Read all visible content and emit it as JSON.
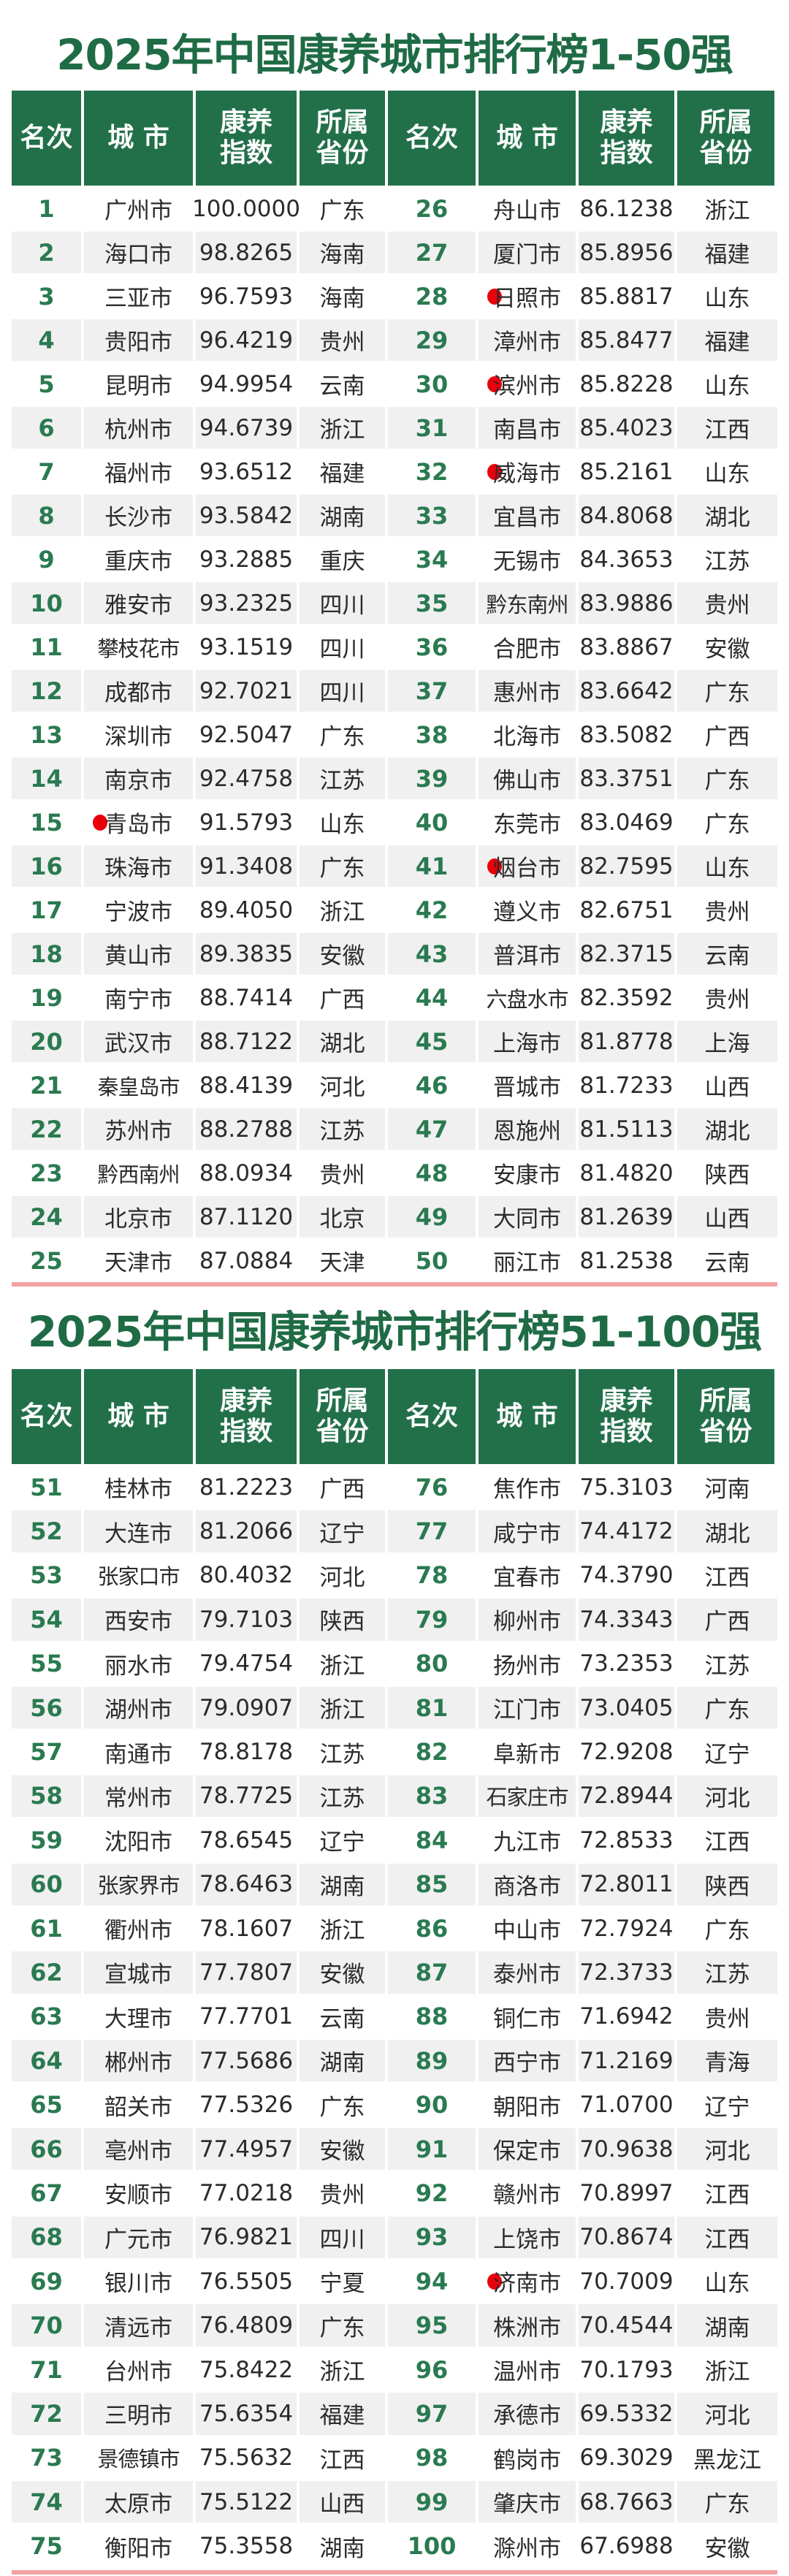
{
  "colors": {
    "header_green": "#22704a",
    "title_green": "#1f6b45",
    "marker_red": "#e8000b",
    "divider_pink": "#f2a3a3",
    "alt_row": "#f0f0f0"
  },
  "tables": [
    {
      "title": "2025年中国康养城市排行榜1-50强",
      "headers": [
        "名次",
        "城 市",
        "康养\n指数",
        "所属\n省份",
        "名次",
        "城 市",
        "康养\n指数",
        "所属\n省份"
      ],
      "left": [
        {
          "rank": "1",
          "city": "广州市",
          "index": "100.0000",
          "province": "广东",
          "marked": false
        },
        {
          "rank": "2",
          "city": "海口市",
          "index": "98.8265",
          "province": "海南",
          "marked": false
        },
        {
          "rank": "3",
          "city": "三亚市",
          "index": "96.7593",
          "province": "海南",
          "marked": false
        },
        {
          "rank": "4",
          "city": "贵阳市",
          "index": "96.4219",
          "province": "贵州",
          "marked": false
        },
        {
          "rank": "5",
          "city": "昆明市",
          "index": "94.9954",
          "province": "云南",
          "marked": false
        },
        {
          "rank": "6",
          "city": "杭州市",
          "index": "94.6739",
          "province": "浙江",
          "marked": false
        },
        {
          "rank": "7",
          "city": "福州市",
          "index": "93.6512",
          "province": "福建",
          "marked": false
        },
        {
          "rank": "8",
          "city": "长沙市",
          "index": "93.5842",
          "province": "湖南",
          "marked": false
        },
        {
          "rank": "9",
          "city": "重庆市",
          "index": "93.2885",
          "province": "重庆",
          "marked": false
        },
        {
          "rank": "10",
          "city": "雅安市",
          "index": "93.2325",
          "province": "四川",
          "marked": false
        },
        {
          "rank": "11",
          "city": "攀枝花市",
          "index": "93.1519",
          "province": "四川",
          "marked": false
        },
        {
          "rank": "12",
          "city": "成都市",
          "index": "92.7021",
          "province": "四川",
          "marked": false
        },
        {
          "rank": "13",
          "city": "深圳市",
          "index": "92.5047",
          "province": "广东",
          "marked": false
        },
        {
          "rank": "14",
          "city": "南京市",
          "index": "92.4758",
          "province": "江苏",
          "marked": false
        },
        {
          "rank": "15",
          "city": "青岛市",
          "index": "91.5793",
          "province": "山东",
          "marked": true
        },
        {
          "rank": "16",
          "city": "珠海市",
          "index": "91.3408",
          "province": "广东",
          "marked": false
        },
        {
          "rank": "17",
          "city": "宁波市",
          "index": "89.4050",
          "province": "浙江",
          "marked": false
        },
        {
          "rank": "18",
          "city": "黄山市",
          "index": "89.3835",
          "province": "安徽",
          "marked": false
        },
        {
          "rank": "19",
          "city": "南宁市",
          "index": "88.7414",
          "province": "广西",
          "marked": false
        },
        {
          "rank": "20",
          "city": "武汉市",
          "index": "88.7122",
          "province": "湖北",
          "marked": false
        },
        {
          "rank": "21",
          "city": "秦皇岛市",
          "index": "88.4139",
          "province": "河北",
          "marked": false
        },
        {
          "rank": "22",
          "city": "苏州市",
          "index": "88.2788",
          "province": "江苏",
          "marked": false
        },
        {
          "rank": "23",
          "city": "黔西南州",
          "index": "88.0934",
          "province": "贵州",
          "marked": false
        },
        {
          "rank": "24",
          "city": "北京市",
          "index": "87.1120",
          "province": "北京",
          "marked": false
        },
        {
          "rank": "25",
          "city": "天津市",
          "index": "87.0884",
          "province": "天津",
          "marked": false
        }
      ],
      "right": [
        {
          "rank": "26",
          "city": "舟山市",
          "index": "86.1238",
          "province": "浙江",
          "marked": false
        },
        {
          "rank": "27",
          "city": "厦门市",
          "index": "85.8956",
          "province": "福建",
          "marked": false
        },
        {
          "rank": "28",
          "city": "日照市",
          "index": "85.8817",
          "province": "山东",
          "marked": true
        },
        {
          "rank": "29",
          "city": "漳州市",
          "index": "85.8477",
          "province": "福建",
          "marked": false
        },
        {
          "rank": "30",
          "city": "滨州市",
          "index": "85.8228",
          "province": "山东",
          "marked": true
        },
        {
          "rank": "31",
          "city": "南昌市",
          "index": "85.4023",
          "province": "江西",
          "marked": false
        },
        {
          "rank": "32",
          "city": "威海市",
          "index": "85.2161",
          "province": "山东",
          "marked": true
        },
        {
          "rank": "33",
          "city": "宜昌市",
          "index": "84.8068",
          "province": "湖北",
          "marked": false
        },
        {
          "rank": "34",
          "city": "无锡市",
          "index": "84.3653",
          "province": "江苏",
          "marked": false
        },
        {
          "rank": "35",
          "city": "黔东南州",
          "index": "83.9886",
          "province": "贵州",
          "marked": false
        },
        {
          "rank": "36",
          "city": "合肥市",
          "index": "83.8867",
          "province": "安徽",
          "marked": false
        },
        {
          "rank": "37",
          "city": "惠州市",
          "index": "83.6642",
          "province": "广东",
          "marked": false
        },
        {
          "rank": "38",
          "city": "北海市",
          "index": "83.5082",
          "province": "广西",
          "marked": false
        },
        {
          "rank": "39",
          "city": "佛山市",
          "index": "83.3751",
          "province": "广东",
          "marked": false
        },
        {
          "rank": "40",
          "city": "东莞市",
          "index": "83.0469",
          "province": "广东",
          "marked": false
        },
        {
          "rank": "41",
          "city": "烟台市",
          "index": "82.7595",
          "province": "山东",
          "marked": true
        },
        {
          "rank": "42",
          "city": "遵义市",
          "index": "82.6751",
          "province": "贵州",
          "marked": false
        },
        {
          "rank": "43",
          "city": "普洱市",
          "index": "82.3715",
          "province": "云南",
          "marked": false
        },
        {
          "rank": "44",
          "city": "六盘水市",
          "index": "82.3592",
          "province": "贵州",
          "marked": false
        },
        {
          "rank": "45",
          "city": "上海市",
          "index": "81.8778",
          "province": "上海",
          "marked": false
        },
        {
          "rank": "46",
          "city": "晋城市",
          "index": "81.7233",
          "province": "山西",
          "marked": false
        },
        {
          "rank": "47",
          "city": "恩施州",
          "index": "81.5113",
          "province": "湖北",
          "marked": false
        },
        {
          "rank": "48",
          "city": "安康市",
          "index": "81.4820",
          "province": "陕西",
          "marked": false
        },
        {
          "rank": "49",
          "city": "大同市",
          "index": "81.2639",
          "province": "山西",
          "marked": false
        },
        {
          "rank": "50",
          "city": "丽江市",
          "index": "81.2538",
          "province": "云南",
          "marked": false
        }
      ]
    },
    {
      "title": "2025年中国康养城市排行榜51-100强",
      "headers": [
        "名次",
        "城 市",
        "康养\n指数",
        "所属\n省份",
        "名次",
        "城 市",
        "康养\n指数",
        "所属\n省份"
      ],
      "left": [
        {
          "rank": "51",
          "city": "桂林市",
          "index": "81.2223",
          "province": "广西",
          "marked": false
        },
        {
          "rank": "52",
          "city": "大连市",
          "index": "81.2066",
          "province": "辽宁",
          "marked": false
        },
        {
          "rank": "53",
          "city": "张家口市",
          "index": "80.4032",
          "province": "河北",
          "marked": false
        },
        {
          "rank": "54",
          "city": "西安市",
          "index": "79.7103",
          "province": "陕西",
          "marked": false
        },
        {
          "rank": "55",
          "city": "丽水市",
          "index": "79.4754",
          "province": "浙江",
          "marked": false
        },
        {
          "rank": "56",
          "city": "湖州市",
          "index": "79.0907",
          "province": "浙江",
          "marked": false
        },
        {
          "rank": "57",
          "city": "南通市",
          "index": "78.8178",
          "province": "江苏",
          "marked": false
        },
        {
          "rank": "58",
          "city": "常州市",
          "index": "78.7725",
          "province": "江苏",
          "marked": false
        },
        {
          "rank": "59",
          "city": "沈阳市",
          "index": "78.6545",
          "province": "辽宁",
          "marked": false
        },
        {
          "rank": "60",
          "city": "张家界市",
          "index": "78.6463",
          "province": "湖南",
          "marked": false
        },
        {
          "rank": "61",
          "city": "衢州市",
          "index": "78.1607",
          "province": "浙江",
          "marked": false
        },
        {
          "rank": "62",
          "city": "宣城市",
          "index": "77.7807",
          "province": "安徽",
          "marked": false
        },
        {
          "rank": "63",
          "city": "大理市",
          "index": "77.7701",
          "province": "云南",
          "marked": false
        },
        {
          "rank": "64",
          "city": "郴州市",
          "index": "77.5686",
          "province": "湖南",
          "marked": false
        },
        {
          "rank": "65",
          "city": "韶关市",
          "index": "77.5326",
          "province": "广东",
          "marked": false
        },
        {
          "rank": "66",
          "city": "亳州市",
          "index": "77.4957",
          "province": "安徽",
          "marked": false
        },
        {
          "rank": "67",
          "city": "安顺市",
          "index": "77.0218",
          "province": "贵州",
          "marked": false
        },
        {
          "rank": "68",
          "city": "广元市",
          "index": "76.9821",
          "province": "四川",
          "marked": false
        },
        {
          "rank": "69",
          "city": "银川市",
          "index": "76.5505",
          "province": "宁夏",
          "marked": false
        },
        {
          "rank": "70",
          "city": "清远市",
          "index": "76.4809",
          "province": "广东",
          "marked": false
        },
        {
          "rank": "71",
          "city": "台州市",
          "index": "75.8422",
          "province": "浙江",
          "marked": false
        },
        {
          "rank": "72",
          "city": "三明市",
          "index": "75.6354",
          "province": "福建",
          "marked": false
        },
        {
          "rank": "73",
          "city": "景德镇市",
          "index": "75.5632",
          "province": "江西",
          "marked": false
        },
        {
          "rank": "74",
          "city": "太原市",
          "index": "75.5122",
          "province": "山西",
          "marked": false
        },
        {
          "rank": "75",
          "city": "衡阳市",
          "index": "75.3558",
          "province": "湖南",
          "marked": false
        }
      ],
      "right": [
        {
          "rank": "76",
          "city": "焦作市",
          "index": "75.3103",
          "province": "河南",
          "marked": false
        },
        {
          "rank": "77",
          "city": "咸宁市",
          "index": "74.4172",
          "province": "湖北",
          "marked": false
        },
        {
          "rank": "78",
          "city": "宜春市",
          "index": "74.3790",
          "province": "江西",
          "marked": false
        },
        {
          "rank": "79",
          "city": "柳州市",
          "index": "74.3343",
          "province": "广西",
          "marked": false
        },
        {
          "rank": "80",
          "city": "扬州市",
          "index": "73.2353",
          "province": "江苏",
          "marked": false
        },
        {
          "rank": "81",
          "city": "江门市",
          "index": "73.0405",
          "province": "广东",
          "marked": false
        },
        {
          "rank": "82",
          "city": "阜新市",
          "index": "72.9208",
          "province": "辽宁",
          "marked": false
        },
        {
          "rank": "83",
          "city": "石家庄市",
          "index": "72.8944",
          "province": "河北",
          "marked": false
        },
        {
          "rank": "84",
          "city": "九江市",
          "index": "72.8533",
          "province": "江西",
          "marked": false
        },
        {
          "rank": "85",
          "city": "商洛市",
          "index": "72.8011",
          "province": "陕西",
          "marked": false
        },
        {
          "rank": "86",
          "city": "中山市",
          "index": "72.7924",
          "province": "广东",
          "marked": false
        },
        {
          "rank": "87",
          "city": "泰州市",
          "index": "72.3733",
          "province": "江苏",
          "marked": false
        },
        {
          "rank": "88",
          "city": "铜仁市",
          "index": "71.6942",
          "province": "贵州",
          "marked": false
        },
        {
          "rank": "89",
          "city": "西宁市",
          "index": "71.2169",
          "province": "青海",
          "marked": false
        },
        {
          "rank": "90",
          "city": "朝阳市",
          "index": "71.0700",
          "province": "辽宁",
          "marked": false
        },
        {
          "rank": "91",
          "city": "保定市",
          "index": "70.9638",
          "province": "河北",
          "marked": false
        },
        {
          "rank": "92",
          "city": "赣州市",
          "index": "70.8997",
          "province": "江西",
          "marked": false
        },
        {
          "rank": "93",
          "city": "上饶市",
          "index": "70.8674",
          "province": "江西",
          "marked": false
        },
        {
          "rank": "94",
          "city": "济南市",
          "index": "70.7009",
          "province": "山东",
          "marked": true
        },
        {
          "rank": "95",
          "city": "株洲市",
          "index": "70.4544",
          "province": "湖南",
          "marked": false
        },
        {
          "rank": "96",
          "city": "温州市",
          "index": "70.1793",
          "province": "浙江",
          "marked": false
        },
        {
          "rank": "97",
          "city": "承德市",
          "index": "69.5332",
          "province": "河北",
          "marked": false
        },
        {
          "rank": "98",
          "city": "鹤岗市",
          "index": "69.3029",
          "province": "黑龙江",
          "marked": false
        },
        {
          "rank": "99",
          "city": "肇庆市",
          "index": "68.7663",
          "province": "广东",
          "marked": false
        },
        {
          "rank": "100",
          "city": "滁州市",
          "index": "67.6988",
          "province": "安徽",
          "marked": false
        }
      ]
    }
  ]
}
